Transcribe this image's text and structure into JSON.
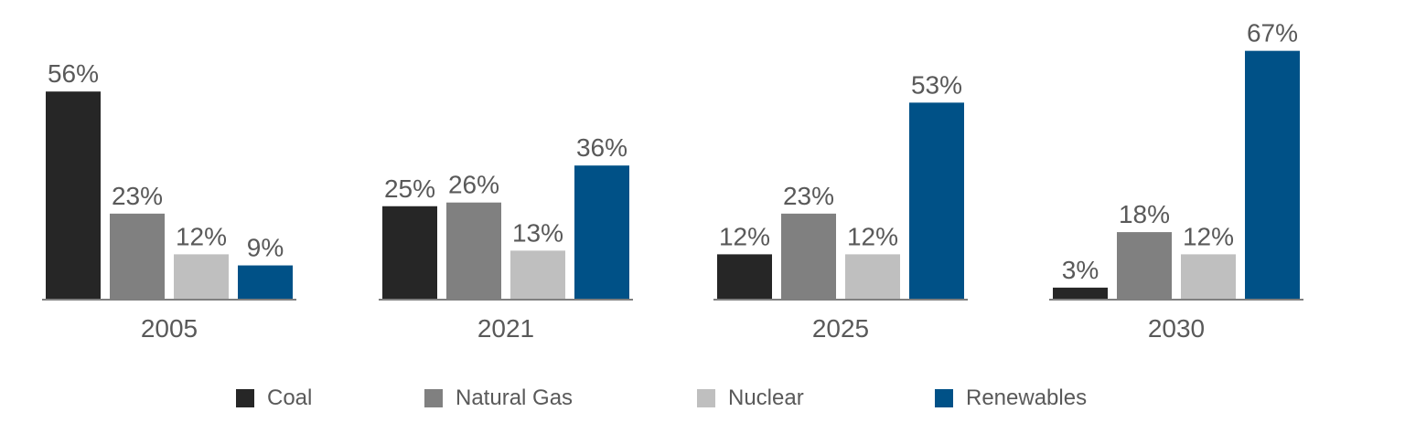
{
  "chart_data": {
    "type": "bar",
    "categories": [
      "2005",
      "2021",
      "2025",
      "2030"
    ],
    "series": [
      {
        "name": "Coal",
        "color": "#262626",
        "values": [
          56,
          25,
          12,
          3
        ]
      },
      {
        "name": "Natural Gas",
        "color": "#808080",
        "values": [
          23,
          26,
          23,
          18
        ]
      },
      {
        "name": "Nuclear",
        "color": "#bfbfbf",
        "values": [
          12,
          13,
          12,
          12
        ]
      },
      {
        "name": "Renewables",
        "color": "#005187",
        "values": [
          9,
          36,
          53,
          67
        ]
      }
    ],
    "value_suffix": "%",
    "ylim": [
      0,
      70
    ],
    "grid": false,
    "legend_position": "bottom",
    "axis_color": "#7f7f7f"
  }
}
